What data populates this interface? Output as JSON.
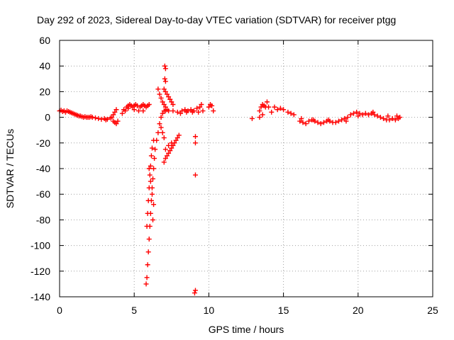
{
  "chart_data": {
    "type": "scatter",
    "title": "Day 292 of 2023, Sidereal Day-to-day VTEC variation (SDTVAR) for receiver ptgg",
    "xlabel": "GPS time / hours",
    "ylabel": "SDTVAR / TECUs",
    "xlim": [
      0,
      25
    ],
    "ylim": [
      -140,
      60
    ],
    "xticks": [
      "0",
      "5",
      "10",
      "15",
      "20",
      "25"
    ],
    "yticks": [
      "60",
      "40",
      "20",
      "0",
      "-20",
      "-40",
      "-60",
      "-80",
      "-100",
      "-120",
      "-140"
    ],
    "grid": true,
    "marker": "+",
    "series": [
      {
        "name": "SDTVAR",
        "color": "#ff0000",
        "points": [
          [
            0.0,
            5
          ],
          [
            0.1,
            5.5
          ],
          [
            0.2,
            4.5
          ],
          [
            0.3,
            5
          ],
          [
            0.4,
            4
          ],
          [
            0.5,
            5
          ],
          [
            0.6,
            4.5
          ],
          [
            0.7,
            4
          ],
          [
            0.8,
            3.5
          ],
          [
            0.9,
            3
          ],
          [
            1.0,
            2.5
          ],
          [
            1.1,
            2
          ],
          [
            1.2,
            1.5
          ],
          [
            1.3,
            1
          ],
          [
            1.4,
            1
          ],
          [
            1.5,
            0.5
          ],
          [
            1.6,
            0
          ],
          [
            1.7,
            0.5
          ],
          [
            1.8,
            0
          ],
          [
            1.9,
            0
          ],
          [
            2.0,
            0
          ],
          [
            2.1,
            0.5
          ],
          [
            2.2,
            0
          ],
          [
            2.4,
            -0.5
          ],
          [
            2.6,
            -1
          ],
          [
            2.8,
            -1.5
          ],
          [
            3.0,
            -1
          ],
          [
            3.1,
            -2
          ],
          [
            3.2,
            -1.5
          ],
          [
            3.4,
            -0.5
          ],
          [
            3.5,
            0
          ],
          [
            3.6,
            2
          ],
          [
            3.7,
            4
          ],
          [
            3.8,
            6
          ],
          [
            3.6,
            -3
          ],
          [
            3.7,
            -4
          ],
          [
            3.8,
            -5
          ],
          [
            3.9,
            -3
          ],
          [
            4.2,
            3
          ],
          [
            4.4,
            5
          ],
          [
            4.5,
            8
          ],
          [
            4.6,
            9
          ],
          [
            4.7,
            10
          ],
          [
            4.8,
            9
          ],
          [
            4.9,
            8
          ],
          [
            5.0,
            9
          ],
          [
            5.1,
            10
          ],
          [
            5.2,
            9
          ],
          [
            5.4,
            8
          ],
          [
            5.5,
            9
          ],
          [
            5.6,
            10
          ],
          [
            5.7,
            9
          ],
          [
            5.8,
            8
          ],
          [
            5.9,
            9
          ],
          [
            6.0,
            10
          ],
          [
            4.3,
            6
          ],
          [
            4.6,
            7
          ],
          [
            5.0,
            6
          ],
          [
            5.3,
            5
          ],
          [
            5.6,
            5
          ],
          [
            5.8,
            -130
          ],
          [
            5.85,
            -125
          ],
          [
            5.9,
            -115
          ],
          [
            5.95,
            -105
          ],
          [
            6.0,
            -95
          ],
          [
            6.05,
            -85
          ],
          [
            6.1,
            -75
          ],
          [
            6.15,
            -65
          ],
          [
            6.2,
            -55
          ],
          [
            6.25,
            -48
          ],
          [
            6.3,
            -40
          ],
          [
            6.35,
            -32
          ],
          [
            6.4,
            -25
          ],
          [
            6.5,
            -18
          ],
          [
            6.6,
            -12
          ],
          [
            6.7,
            -5
          ],
          [
            6.8,
            0
          ],
          [
            6.9,
            3
          ],
          [
            7.0,
            5
          ],
          [
            7.1,
            5
          ],
          [
            5.85,
            -85
          ],
          [
            5.9,
            -75
          ],
          [
            5.95,
            -65
          ],
          [
            6.0,
            -55
          ],
          [
            6.05,
            -45
          ],
          [
            6.1,
            -38
          ],
          [
            6.15,
            -30
          ],
          [
            6.2,
            -24
          ],
          [
            6.3,
            -18
          ],
          [
            6.0,
            -40
          ],
          [
            6.1,
            -50
          ],
          [
            6.2,
            -60
          ],
          [
            6.3,
            -68
          ],
          [
            6.25,
            -80
          ],
          [
            6.6,
            22
          ],
          [
            6.7,
            18
          ],
          [
            6.8,
            15
          ],
          [
            6.9,
            12
          ],
          [
            7.0,
            10
          ],
          [
            7.1,
            8
          ],
          [
            7.2,
            6
          ],
          [
            7.05,
            40
          ],
          [
            7.1,
            38
          ],
          [
            7.05,
            30
          ],
          [
            7.1,
            28
          ],
          [
            7.0,
            22
          ],
          [
            7.1,
            20
          ],
          [
            7.2,
            18
          ],
          [
            7.3,
            16
          ],
          [
            7.4,
            14
          ],
          [
            7.5,
            12
          ],
          [
            7.6,
            10
          ],
          [
            6.8,
            -8
          ],
          [
            6.9,
            -12
          ],
          [
            7.0,
            -16
          ],
          [
            7.0,
            -35
          ],
          [
            7.1,
            -32
          ],
          [
            7.2,
            -30
          ],
          [
            7.3,
            -28
          ],
          [
            7.4,
            -26
          ],
          [
            7.5,
            -24
          ],
          [
            7.6,
            -22
          ],
          [
            7.7,
            -20
          ],
          [
            7.8,
            -18
          ],
          [
            7.9,
            -16
          ],
          [
            8.0,
            -14
          ],
          [
            7.1,
            -25
          ],
          [
            7.3,
            -22
          ],
          [
            7.5,
            -20
          ],
          [
            7.3,
            5
          ],
          [
            7.6,
            5
          ],
          [
            7.9,
            4
          ],
          [
            8.2,
            5
          ],
          [
            8.4,
            6
          ],
          [
            8.6,
            5
          ],
          [
            8.8,
            6
          ],
          [
            9.0,
            5
          ],
          [
            9.2,
            7
          ],
          [
            9.4,
            8
          ],
          [
            9.6,
            5
          ],
          [
            8.1,
            3
          ],
          [
            8.5,
            4
          ],
          [
            8.9,
            4
          ],
          [
            9.3,
            4
          ],
          [
            9.5,
            10
          ],
          [
            9.1,
            -15
          ],
          [
            9.1,
            -20
          ],
          [
            9.1,
            -45
          ],
          [
            9.1,
            -135
          ],
          [
            9.05,
            -137
          ],
          [
            10.0,
            8
          ],
          [
            10.1,
            10
          ],
          [
            10.2,
            9
          ],
          [
            10.3,
            5
          ],
          [
            12.9,
            -1
          ],
          [
            13.4,
            5
          ],
          [
            13.5,
            8
          ],
          [
            13.6,
            10
          ],
          [
            13.7,
            9
          ],
          [
            13.8,
            8
          ],
          [
            13.9,
            12
          ],
          [
            14.0,
            8
          ],
          [
            13.4,
            0
          ],
          [
            13.6,
            2
          ],
          [
            14.2,
            4
          ],
          [
            14.4,
            8
          ],
          [
            14.6,
            6
          ],
          [
            14.8,
            7
          ],
          [
            15.0,
            6
          ],
          [
            15.3,
            4
          ],
          [
            15.5,
            3
          ],
          [
            15.7,
            2
          ],
          [
            16.1,
            -3
          ],
          [
            16.3,
            -4
          ],
          [
            16.5,
            -5
          ],
          [
            16.7,
            -3
          ],
          [
            16.9,
            -2
          ],
          [
            17.1,
            -3
          ],
          [
            17.3,
            -4
          ],
          [
            17.5,
            -5
          ],
          [
            17.7,
            -4
          ],
          [
            17.9,
            -3
          ],
          [
            18.1,
            -3
          ],
          [
            18.3,
            -4
          ],
          [
            18.5,
            -4
          ],
          [
            18.7,
            -3
          ],
          [
            18.9,
            -2
          ],
          [
            19.1,
            -1
          ],
          [
            19.3,
            0
          ],
          [
            19.5,
            2
          ],
          [
            19.7,
            3
          ],
          [
            19.9,
            4
          ],
          [
            20.1,
            3
          ],
          [
            20.3,
            2
          ],
          [
            20.5,
            3
          ],
          [
            20.7,
            2
          ],
          [
            20.9,
            3
          ],
          [
            21.1,
            2
          ],
          [
            21.3,
            1
          ],
          [
            21.5,
            0
          ],
          [
            21.7,
            -1
          ],
          [
            21.9,
            -2
          ],
          [
            22.1,
            -2
          ],
          [
            22.3,
            -1
          ],
          [
            22.5,
            -2
          ],
          [
            22.7,
            -1
          ],
          [
            22.8,
            0
          ],
          [
            16.2,
            -1
          ],
          [
            17.0,
            -2
          ],
          [
            18.0,
            -2
          ],
          [
            19.2,
            -3
          ],
          [
            20.0,
            1
          ],
          [
            21.0,
            4
          ],
          [
            22.0,
            1
          ],
          [
            22.6,
            1
          ]
        ]
      }
    ]
  }
}
